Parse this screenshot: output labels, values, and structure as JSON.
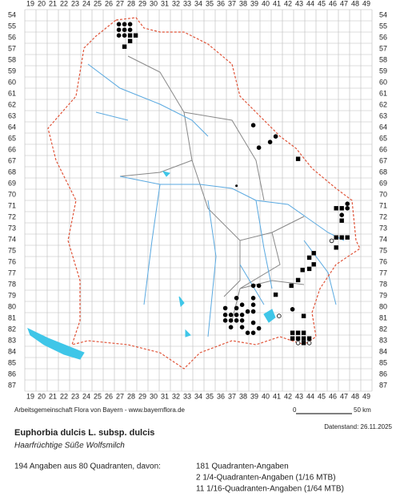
{
  "map": {
    "columns": [
      19,
      20,
      21,
      22,
      23,
      24,
      25,
      26,
      27,
      28,
      29,
      30,
      31,
      32,
      33,
      34,
      35,
      36,
      37,
      38,
      39,
      40,
      41,
      42,
      43,
      44,
      45,
      46,
      47,
      48,
      49
    ],
    "rows": [
      54,
      55,
      56,
      57,
      58,
      59,
      60,
      61,
      62,
      63,
      64,
      65,
      66,
      67,
      68,
      69,
      70,
      71,
      72,
      73,
      74,
      75,
      76,
      77,
      78,
      79,
      80,
      81,
      82,
      83,
      84,
      85,
      86,
      87
    ],
    "points": [
      {
        "c": 26.9,
        "r": 54.8,
        "s": "dot"
      },
      {
        "c": 27.4,
        "r": 54.8,
        "s": "dot"
      },
      {
        "c": 27.9,
        "r": 54.8,
        "s": "dot"
      },
      {
        "c": 26.9,
        "r": 55.3,
        "s": "dot"
      },
      {
        "c": 27.4,
        "r": 55.3,
        "s": "dot"
      },
      {
        "c": 27.9,
        "r": 55.3,
        "s": "dot"
      },
      {
        "c": 26.9,
        "r": 55.8,
        "s": "dot"
      },
      {
        "c": 27.4,
        "r": 55.8,
        "s": "dot"
      },
      {
        "c": 27.9,
        "r": 55.8,
        "s": "square"
      },
      {
        "c": 28.4,
        "r": 55.8,
        "s": "square"
      },
      {
        "c": 27.9,
        "r": 56.3,
        "s": "square"
      },
      {
        "c": 27.4,
        "r": 56.8,
        "s": "square"
      },
      {
        "c": 38.9,
        "r": 63.8,
        "s": "dot"
      },
      {
        "c": 40.9,
        "r": 64.8,
        "s": "dot"
      },
      {
        "c": 40.4,
        "r": 65.3,
        "s": "dot"
      },
      {
        "c": 39.4,
        "r": 65.8,
        "s": "dot"
      },
      {
        "c": 42.9,
        "r": 66.8,
        "s": "square"
      },
      {
        "c": 37.4,
        "r": 69.2,
        "s": "small"
      },
      {
        "c": 47.3,
        "r": 70.8,
        "s": "dot"
      },
      {
        "c": 46.3,
        "r": 71.2,
        "s": "square"
      },
      {
        "c": 46.8,
        "r": 71.2,
        "s": "square"
      },
      {
        "c": 47.3,
        "r": 71.2,
        "s": "dot"
      },
      {
        "c": 46.8,
        "r": 71.8,
        "s": "dot"
      },
      {
        "c": 46.8,
        "r": 72.3,
        "s": "square"
      },
      {
        "c": 45.9,
        "r": 74.1,
        "s": "open"
      },
      {
        "c": 46.3,
        "r": 73.8,
        "s": "square"
      },
      {
        "c": 46.8,
        "r": 73.8,
        "s": "square"
      },
      {
        "c": 47.3,
        "r": 73.8,
        "s": "square"
      },
      {
        "c": 46.3,
        "r": 74.7,
        "s": "square"
      },
      {
        "c": 44.3,
        "r": 75.2,
        "s": "square"
      },
      {
        "c": 43.9,
        "r": 75.6,
        "s": "square"
      },
      {
        "c": 44.3,
        "r": 76.2,
        "s": "square"
      },
      {
        "c": 43.9,
        "r": 76.6,
        "s": "square"
      },
      {
        "c": 43.3,
        "r": 76.7,
        "s": "square"
      },
      {
        "c": 42.9,
        "r": 77.6,
        "s": "square"
      },
      {
        "c": 42.3,
        "r": 78.1,
        "s": "square"
      },
      {
        "c": 40.9,
        "r": 78.9,
        "s": "square"
      },
      {
        "c": 38.9,
        "r": 78.1,
        "s": "dot"
      },
      {
        "c": 39.4,
        "r": 78.1,
        "s": "dot"
      },
      {
        "c": 37.4,
        "r": 79.2,
        "s": "dot"
      },
      {
        "c": 38.9,
        "r": 79.2,
        "s": "dot"
      },
      {
        "c": 38.9,
        "r": 79.8,
        "s": "dot"
      },
      {
        "c": 37.9,
        "r": 79.8,
        "s": "dot"
      },
      {
        "c": 36.4,
        "r": 80.1,
        "s": "dot"
      },
      {
        "c": 37.4,
        "r": 80.1,
        "s": "dot"
      },
      {
        "c": 38.4,
        "r": 80.4,
        "s": "dot"
      },
      {
        "c": 38.9,
        "r": 80.4,
        "s": "dot"
      },
      {
        "c": 42.4,
        "r": 80.2,
        "s": "dot"
      },
      {
        "c": 43.4,
        "r": 80.8,
        "s": "square"
      },
      {
        "c": 41.2,
        "r": 80.8,
        "s": "open"
      },
      {
        "c": 36.4,
        "r": 80.7,
        "s": "dot"
      },
      {
        "c": 36.9,
        "r": 80.7,
        "s": "dot"
      },
      {
        "c": 37.4,
        "r": 80.7,
        "s": "dot"
      },
      {
        "c": 37.9,
        "r": 80.7,
        "s": "dot"
      },
      {
        "c": 36.4,
        "r": 81.2,
        "s": "dot"
      },
      {
        "c": 36.9,
        "r": 81.2,
        "s": "dot"
      },
      {
        "c": 37.4,
        "r": 81.2,
        "s": "dot"
      },
      {
        "c": 37.9,
        "r": 81.2,
        "s": "dot"
      },
      {
        "c": 36.9,
        "r": 81.8,
        "s": "dot"
      },
      {
        "c": 37.9,
        "r": 81.8,
        "s": "dot"
      },
      {
        "c": 38.9,
        "r": 81.4,
        "s": "dot"
      },
      {
        "c": 39.4,
        "r": 81.9,
        "s": "dot"
      },
      {
        "c": 38.4,
        "r": 82.3,
        "s": "dot"
      },
      {
        "c": 38.9,
        "r": 82.3,
        "s": "dot"
      },
      {
        "c": 42.4,
        "r": 82.3,
        "s": "square"
      },
      {
        "c": 42.9,
        "r": 82.3,
        "s": "square"
      },
      {
        "c": 43.4,
        "r": 82.3,
        "s": "square"
      },
      {
        "c": 42.4,
        "r": 82.8,
        "s": "square"
      },
      {
        "c": 42.9,
        "r": 82.8,
        "s": "square"
      },
      {
        "c": 43.4,
        "r": 82.8,
        "s": "square"
      },
      {
        "c": 43.9,
        "r": 82.8,
        "s": "square"
      },
      {
        "c": 42.9,
        "r": 83.2,
        "s": "open"
      },
      {
        "c": 43.4,
        "r": 83.2,
        "s": "square"
      },
      {
        "c": 43.9,
        "r": 83.2,
        "s": "open"
      }
    ]
  },
  "footer": {
    "credit": "Arbeitsgemeinschaft Flora von Bayern - www.bayernflora.de",
    "scale_start": "0",
    "scale_end": "50 km",
    "date": "Datenstand: 26.11.2025"
  },
  "species": {
    "name": "Euphorbia dulcis L. subsp. dulcis",
    "common_name": "Haarfrüchtige Süße Wolfsmilch"
  },
  "summary": {
    "total": "194 Angaben aus 80 Quadranten, davon:",
    "details": [
      "181 Quadranten-Angaben",
      "2 1/4-Quadranten-Angaben (1/16 MTB)",
      "11 1/16-Quadranten-Angaben (1/64 MTB)"
    ]
  }
}
